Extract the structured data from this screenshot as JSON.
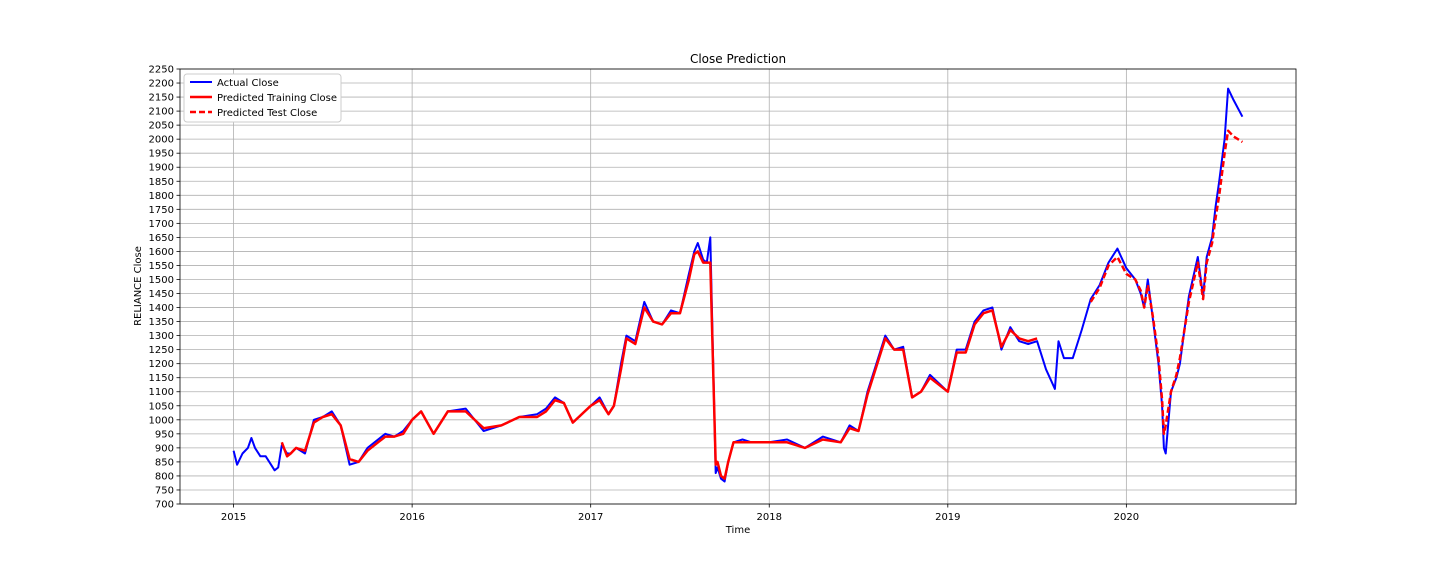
{
  "chart_data": {
    "type": "line",
    "title": "Close Prediction",
    "xlabel": "Time",
    "ylabel": "RELIANCE Close",
    "xlim": [
      2014.7,
      2020.95
    ],
    "ylim": [
      700,
      2250
    ],
    "x_ticks": [
      2015,
      2016,
      2017,
      2018,
      2019,
      2020
    ],
    "x_tick_labels": [
      "2015",
      "2016",
      "2017",
      "2018",
      "2019",
      "2020"
    ],
    "y_ticks": [
      700,
      750,
      800,
      850,
      900,
      950,
      1000,
      1050,
      1100,
      1150,
      1200,
      1250,
      1300,
      1350,
      1400,
      1450,
      1500,
      1550,
      1600,
      1650,
      1700,
      1750,
      1800,
      1850,
      1900,
      1950,
      2000,
      2050,
      2100,
      2150,
      2200,
      2250
    ],
    "grid": true,
    "legend_position": "top-left",
    "series": [
      {
        "name": "Actual Close",
        "color": "#0000ff",
        "dash": "solid",
        "x": [
          2015.0,
          2015.02,
          2015.05,
          2015.08,
          2015.1,
          2015.12,
          2015.15,
          2015.18,
          2015.2,
          2015.23,
          2015.25,
          2015.27,
          2015.3,
          2015.32,
          2015.35,
          2015.4,
          2015.45,
          2015.5,
          2015.55,
          2015.6,
          2015.65,
          2015.7,
          2015.75,
          2015.85,
          2015.9,
          2015.95,
          2016.0,
          2016.05,
          2016.12,
          2016.2,
          2016.3,
          2016.4,
          2016.5,
          2016.6,
          2016.7,
          2016.75,
          2016.8,
          2016.85,
          2016.9,
          2017.0,
          2017.05,
          2017.1,
          2017.13,
          2017.17,
          2017.2,
          2017.25,
          2017.3,
          2017.35,
          2017.4,
          2017.45,
          2017.5,
          2017.55,
          2017.58,
          2017.6,
          2017.63,
          2017.65,
          2017.67,
          2017.7,
          2017.71,
          2017.73,
          2017.75,
          2017.77,
          2017.8,
          2017.85,
          2017.9,
          2018.0,
          2018.1,
          2018.2,
          2018.3,
          2018.4,
          2018.45,
          2018.5,
          2018.55,
          2018.6,
          2018.65,
          2018.7,
          2018.75,
          2018.8,
          2018.85,
          2018.9,
          2019.0,
          2019.05,
          2019.1,
          2019.15,
          2019.2,
          2019.25,
          2019.3,
          2019.35,
          2019.4,
          2019.45,
          2019.5,
          2019.55,
          2019.6,
          2019.62,
          2019.65,
          2019.7,
          2019.75,
          2019.8,
          2019.85,
          2019.9,
          2019.95,
          2020.0,
          2020.05,
          2020.08,
          2020.1,
          2020.12,
          2020.15,
          2020.18,
          2020.2,
          2020.21,
          2020.22,
          2020.25,
          2020.28,
          2020.3,
          2020.35,
          2020.4,
          2020.43,
          2020.45,
          2020.48,
          2020.5,
          2020.52,
          2020.55,
          2020.57,
          2020.6,
          2020.65
        ],
        "y": [
          890,
          840,
          880,
          900,
          935,
          900,
          870,
          870,
          850,
          820,
          830,
          910,
          880,
          880,
          900,
          880,
          1000,
          1010,
          1030,
          980,
          840,
          850,
          900,
          950,
          940,
          960,
          1000,
          1030,
          950,
          1030,
          1040,
          960,
          980,
          1010,
          1020,
          1040,
          1080,
          1060,
          990,
          1050,
          1080,
          1020,
          1050,
          1200,
          1300,
          1280,
          1420,
          1350,
          1340,
          1390,
          1380,
          1520,
          1600,
          1630,
          1570,
          1560,
          1650,
          810,
          830,
          790,
          780,
          850,
          920,
          930,
          920,
          920,
          930,
          900,
          940,
          920,
          980,
          960,
          1100,
          1200,
          1300,
          1250,
          1260,
          1080,
          1100,
          1160,
          1100,
          1250,
          1250,
          1350,
          1390,
          1400,
          1250,
          1330,
          1280,
          1270,
          1280,
          1180,
          1110,
          1280,
          1220,
          1220,
          1320,
          1430,
          1480,
          1560,
          1610,
          1540,
          1500,
          1450,
          1400,
          1500,
          1350,
          1200,
          1050,
          900,
          880,
          1100,
          1150,
          1200,
          1440,
          1580,
          1440,
          1580,
          1650,
          1760,
          1850,
          2000,
          2180,
          2140,
          2080
        ]
      },
      {
        "name": "Predicted Training Close",
        "color": "#ff0000",
        "dash": "solid",
        "x": [
          2015.27,
          2015.3,
          2015.32,
          2015.35,
          2015.4,
          2015.45,
          2015.5,
          2015.55,
          2015.6,
          2015.65,
          2015.7,
          2015.75,
          2015.85,
          2015.9,
          2015.95,
          2016.0,
          2016.05,
          2016.12,
          2016.2,
          2016.3,
          2016.4,
          2016.5,
          2016.6,
          2016.7,
          2016.75,
          2016.8,
          2016.85,
          2016.9,
          2017.0,
          2017.05,
          2017.1,
          2017.13,
          2017.17,
          2017.2,
          2017.25,
          2017.3,
          2017.35,
          2017.4,
          2017.45,
          2017.5,
          2017.55,
          2017.58,
          2017.6,
          2017.63,
          2017.65,
          2017.67,
          2017.7,
          2017.71,
          2017.73,
          2017.75,
          2017.77,
          2017.8,
          2017.85,
          2017.9,
          2018.0,
          2018.1,
          2018.2,
          2018.3,
          2018.4,
          2018.45,
          2018.5,
          2018.55,
          2018.6,
          2018.65,
          2018.7,
          2018.75,
          2018.8,
          2018.85,
          2018.9,
          2019.0,
          2019.05,
          2019.1,
          2019.15,
          2019.2,
          2019.25,
          2019.3,
          2019.35,
          2019.4,
          2019.45,
          2019.5
        ],
        "y": [
          920,
          870,
          880,
          900,
          890,
          990,
          1010,
          1020,
          980,
          860,
          850,
          890,
          940,
          940,
          950,
          1000,
          1030,
          950,
          1030,
          1030,
          970,
          980,
          1010,
          1010,
          1030,
          1070,
          1060,
          990,
          1050,
          1070,
          1020,
          1050,
          1180,
          1290,
          1270,
          1400,
          1350,
          1340,
          1380,
          1380,
          1500,
          1590,
          1600,
          1560,
          1560,
          1560,
          840,
          850,
          800,
          790,
          850,
          920,
          920,
          920,
          920,
          920,
          900,
          930,
          920,
          970,
          960,
          1090,
          1190,
          1290,
          1250,
          1250,
          1080,
          1100,
          1150,
          1100,
          1240,
          1240,
          1340,
          1380,
          1390,
          1260,
          1320,
          1290,
          1280,
          1290
        ]
      },
      {
        "name": "Predicted Test Close",
        "color": "#ff0000",
        "dash": "dashed",
        "x": [
          2019.8,
          2019.85,
          2019.9,
          2019.95,
          2020.0,
          2020.05,
          2020.08,
          2020.1,
          2020.12,
          2020.15,
          2020.18,
          2020.2,
          2020.21,
          2020.22,
          2020.25,
          2020.28,
          2020.3,
          2020.35,
          2020.4,
          2020.43,
          2020.45,
          2020.48,
          2020.5,
          2020.52,
          2020.55,
          2020.57,
          2020.6,
          2020.65
        ],
        "y": [
          1420,
          1470,
          1550,
          1580,
          1520,
          1500,
          1460,
          1400,
          1480,
          1360,
          1220,
          1070,
          950,
          980,
          1100,
          1160,
          1220,
          1420,
          1560,
          1430,
          1560,
          1630,
          1720,
          1800,
          1950,
          2030,
          2010,
          1990
        ]
      }
    ]
  }
}
